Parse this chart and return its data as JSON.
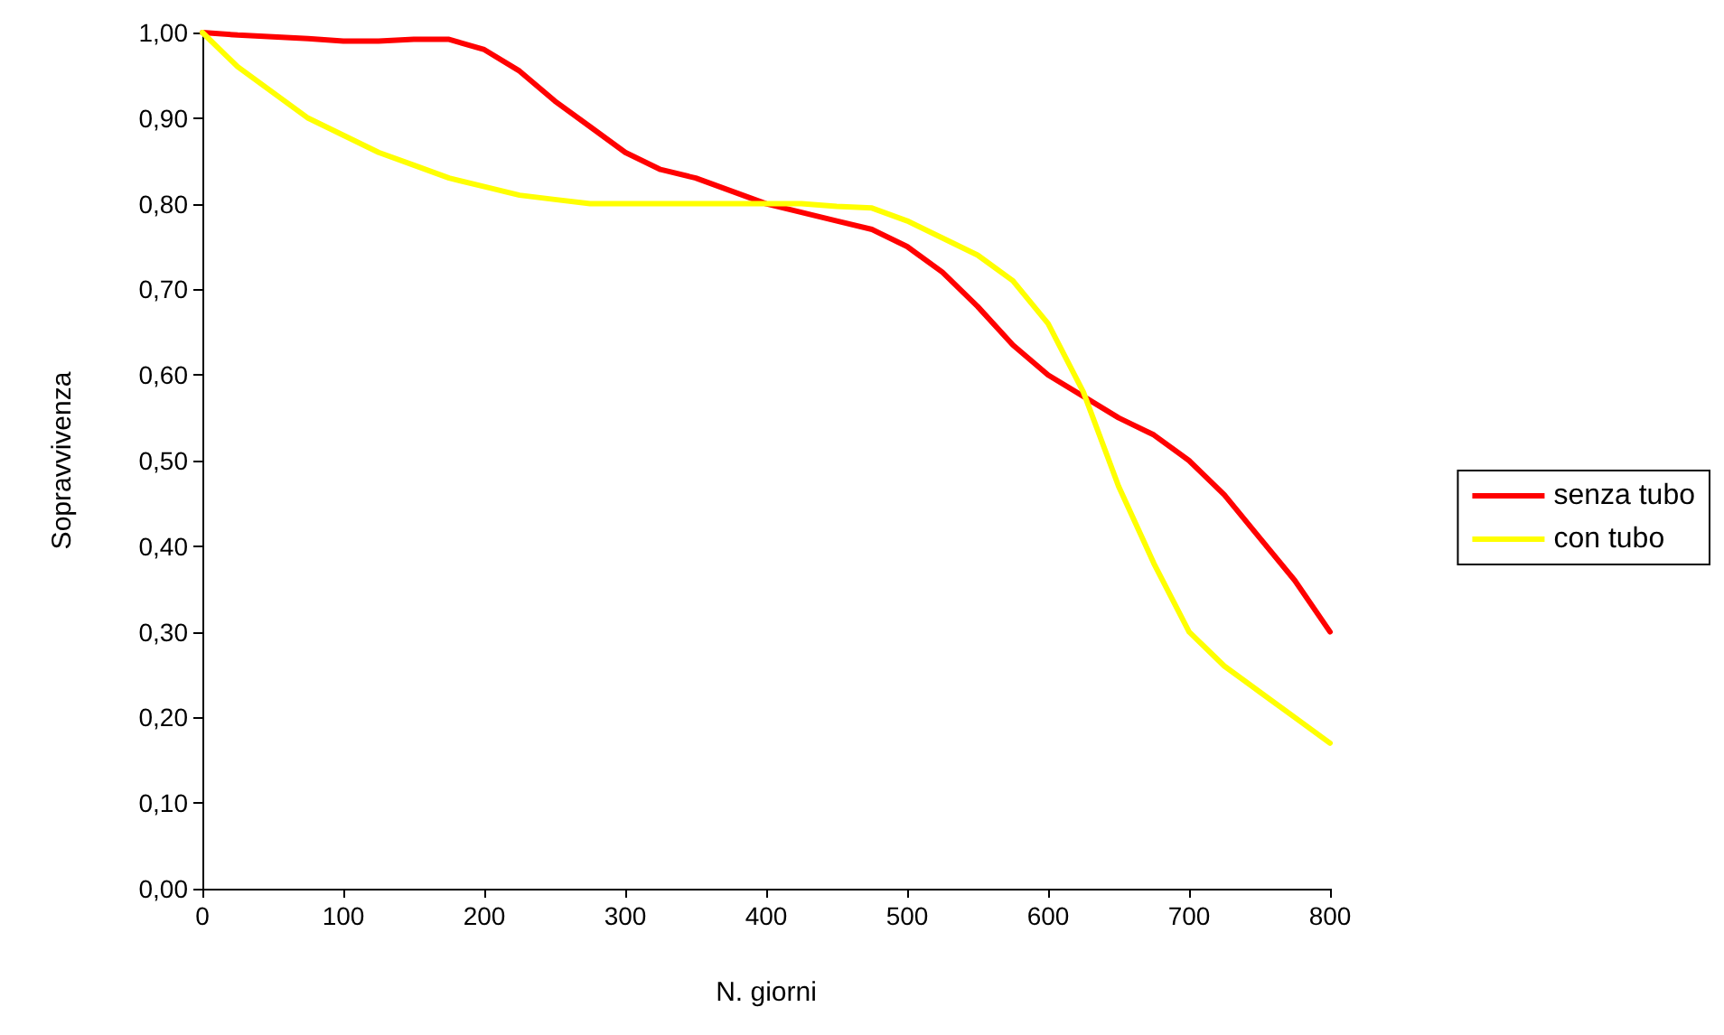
{
  "chart_data": {
    "type": "line",
    "xlabel": "N. giorni",
    "ylabel": "Sopravvivenza",
    "x": [
      0,
      25,
      50,
      75,
      100,
      125,
      150,
      175,
      200,
      225,
      250,
      275,
      300,
      325,
      350,
      375,
      400,
      425,
      450,
      475,
      500,
      525,
      550,
      575,
      600,
      625,
      650,
      675,
      700,
      725,
      750,
      775,
      800
    ],
    "series": [
      {
        "name": "senza tubo",
        "color": "#ff0000",
        "values": [
          1.0,
          0.997,
          0.995,
          0.993,
          0.99,
          0.99,
          0.992,
          0.992,
          0.98,
          0.955,
          0.92,
          0.89,
          0.86,
          0.84,
          0.83,
          0.815,
          0.8,
          0.79,
          0.78,
          0.77,
          0.75,
          0.72,
          0.68,
          0.635,
          0.6,
          0.575,
          0.55,
          0.53,
          0.5,
          0.46,
          0.41,
          0.36,
          0.3
        ]
      },
      {
        "name": "con tubo",
        "color": "#ffff00",
        "values": [
          1.0,
          0.96,
          0.93,
          0.9,
          0.88,
          0.86,
          0.845,
          0.83,
          0.82,
          0.81,
          0.805,
          0.8,
          0.8,
          0.8,
          0.8,
          0.8,
          0.8,
          0.8,
          0.797,
          0.795,
          0.78,
          0.76,
          0.74,
          0.71,
          0.66,
          0.58,
          0.47,
          0.38,
          0.3,
          0.26,
          0.23,
          0.2,
          0.17
        ]
      }
    ],
    "xlim": [
      0,
      800
    ],
    "xticks": [
      0,
      100,
      200,
      300,
      400,
      500,
      600,
      700,
      800
    ],
    "ylim": [
      0,
      1
    ],
    "yticks": [
      {
        "value": 0,
        "label": "0,00"
      },
      {
        "value": 0.1,
        "label": "0,10"
      },
      {
        "value": 0.2,
        "label": "0,20"
      },
      {
        "value": 0.3,
        "label": "0,30"
      },
      {
        "value": 0.4,
        "label": "0,40"
      },
      {
        "value": 0.5,
        "label": "0,50"
      },
      {
        "value": 0.6,
        "label": "0,60"
      },
      {
        "value": 0.7,
        "label": "0,70"
      },
      {
        "value": 0.8,
        "label": "0,80"
      },
      {
        "value": 0.9,
        "label": "0,90"
      },
      {
        "value": 1,
        "label": "1,00"
      }
    ],
    "grid": false,
    "legend": "right",
    "marker": "none",
    "line_style": "solid"
  }
}
